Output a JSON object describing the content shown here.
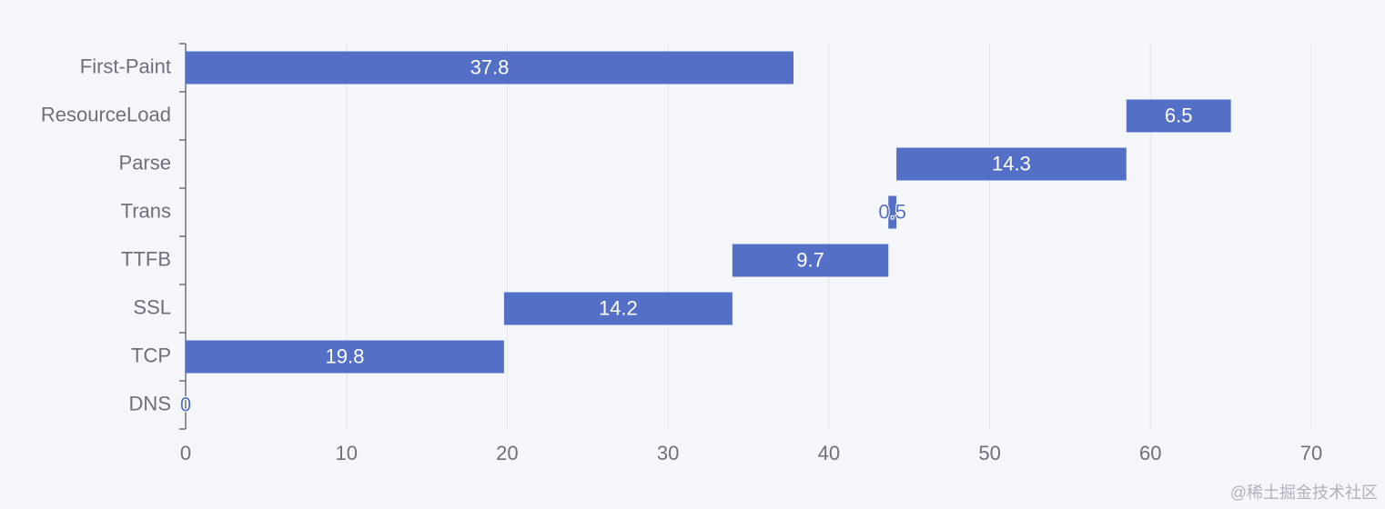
{
  "chart_data": {
    "type": "bar",
    "orientation": "horizontal",
    "stacked": true,
    "categories": [
      "DNS",
      "TCP",
      "SSL",
      "TTFB",
      "Trans",
      "Parse",
      "ResourceLoad",
      "First-Paint"
    ],
    "series": [
      {
        "color": "transparent",
        "values": [
          0,
          0,
          19.8,
          34,
          43.7,
          44.2,
          58.5,
          0
        ]
      },
      {
        "color": "#5470c6",
        "values": [
          0,
          19.8,
          14.2,
          9.7,
          0.5,
          14.3,
          6.5,
          37.8
        ]
      }
    ],
    "xlim": [
      0,
      70
    ],
    "xticks": [
      0,
      10,
      20,
      30,
      40,
      50,
      60,
      70
    ],
    "grid": true,
    "watermark": "@稀土掘金技术社区"
  }
}
